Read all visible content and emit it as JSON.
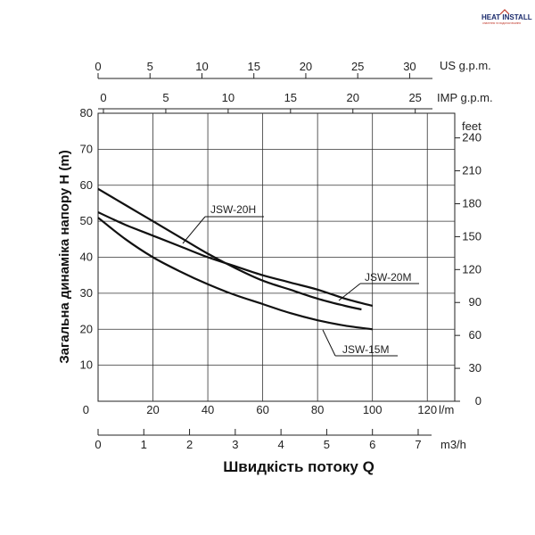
{
  "brand": {
    "logo_text": "HEAT INSTALL",
    "logo_tagline": "опалення та водопостачання"
  },
  "chart_data": {
    "type": "line",
    "title": "",
    "xlabel": "Швидкість потоку Q",
    "ylabel": "Загальна динаміка напору H (m)",
    "x_unit": "l/m",
    "xlim": [
      0,
      130
    ],
    "ylim": [
      0,
      80
    ],
    "grid": true,
    "x_ticks": [
      20,
      40,
      60,
      80,
      100,
      120
    ],
    "y_ticks": [
      10,
      20,
      30,
      40,
      50,
      60,
      70,
      80
    ],
    "y_zero_label": "0",
    "series": [
      {
        "name": "JSW-20H",
        "x": [
          0,
          10,
          20,
          30,
          40,
          50,
          60,
          70,
          80,
          90,
          96
        ],
        "y": [
          59,
          54.5,
          50,
          45.5,
          41,
          37,
          33.5,
          31,
          28.5,
          26.5,
          25.5
        ]
      },
      {
        "name": "JSW-20M",
        "x": [
          0,
          10,
          20,
          30,
          40,
          50,
          60,
          70,
          80,
          90,
          100
        ],
        "y": [
          52.5,
          49,
          46,
          43,
          40,
          37.5,
          35,
          33,
          31,
          28.5,
          26.5
        ]
      },
      {
        "name": "JSW-15M",
        "x": [
          0,
          10,
          20,
          30,
          40,
          50,
          60,
          70,
          80,
          90,
          100
        ],
        "y": [
          51,
          45,
          40,
          36,
          32.5,
          29.5,
          27,
          24.5,
          22.5,
          21,
          20
        ]
      }
    ],
    "secondary_axes": {
      "us_gpm": {
        "label": "US g.p.m.",
        "ticks": [
          0,
          5,
          10,
          15,
          20,
          25,
          30
        ]
      },
      "imp_gpm": {
        "label": "IMP g.p.m.",
        "ticks": [
          0,
          5,
          10,
          15,
          20,
          25
        ]
      },
      "m3h": {
        "label": "m3/h",
        "ticks": [
          0,
          1,
          2,
          3,
          4,
          5,
          6,
          7
        ]
      },
      "feet": {
        "label": "feet",
        "ticks": [
          0,
          30,
          60,
          90,
          120,
          150,
          180,
          210,
          240
        ]
      }
    }
  }
}
